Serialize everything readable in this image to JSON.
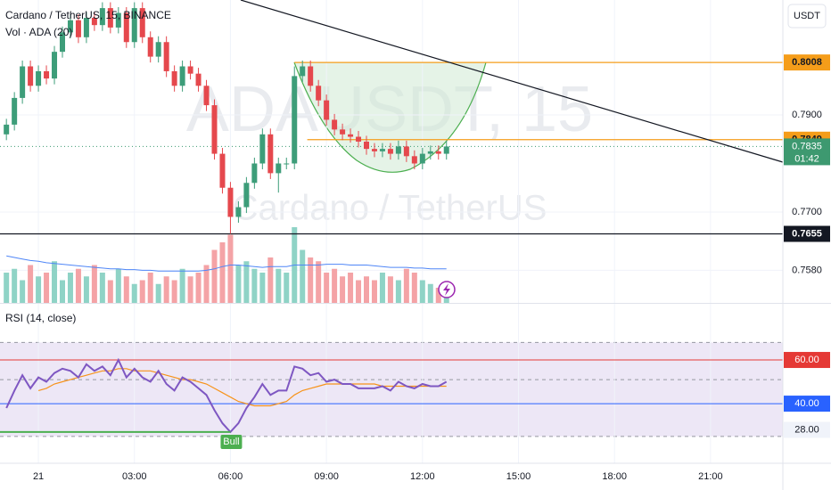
{
  "chart_data": {
    "type": "candlestick",
    "title": "Cardano / TetherUS, 15, BINANCE",
    "watermark": "ADAUSDT, 15",
    "watermark_subtitle": "Cardano / TetherUS",
    "currency": "USDT",
    "x": [
      -1.0,
      -0.75,
      -0.5,
      -0.25,
      0.0,
      0.25,
      0.5,
      0.75,
      1.0,
      1.25,
      1.5,
      1.75,
      2.0,
      2.25,
      2.5,
      2.75,
      3.0,
      3.25,
      3.5,
      3.75,
      4.0,
      4.25,
      4.5,
      4.75,
      5.0,
      5.25,
      5.5,
      5.75,
      6.0,
      6.25,
      6.5,
      6.75,
      7.0,
      7.25,
      7.5,
      7.75,
      8.0,
      8.25,
      8.5,
      8.75,
      9.0,
      9.25,
      9.5,
      9.75,
      10.0,
      10.25,
      10.5,
      10.75,
      11.0,
      11.25,
      11.5,
      11.75,
      12.0,
      12.25,
      12.5,
      12.75
    ],
    "xlim": [
      -1.2,
      23.26
    ],
    "xticks": [
      {
        "value": 0,
        "label": "21"
      },
      {
        "value": 3,
        "label": "03:00"
      },
      {
        "value": 6,
        "label": "06:00"
      },
      {
        "value": 9,
        "label": "09:00"
      },
      {
        "value": 12,
        "label": "12:00"
      },
      {
        "value": 15,
        "label": "15:00"
      },
      {
        "value": 18,
        "label": "18:00"
      },
      {
        "value": 21,
        "label": "21:00"
      }
    ],
    "ylim": [
      0.75128,
      0.81367
    ],
    "yticks": [
      {
        "value": 0.758,
        "label": "0.7580"
      },
      {
        "value": 0.77,
        "label": "0.7700"
      },
      {
        "value": 0.79,
        "label": "0.7900"
      }
    ],
    "grid": true,
    "up_color": "#3d9d79",
    "down_color": "#e5484d",
    "candles": [
      [
        0.786,
        0.7892,
        0.7848,
        0.788
      ],
      [
        0.788,
        0.7947,
        0.7868,
        0.7935
      ],
      [
        0.7935,
        0.8012,
        0.7923,
        0.8
      ],
      [
        0.8,
        0.8012,
        0.7948,
        0.796
      ],
      [
        0.796,
        0.8002,
        0.7948,
        0.799
      ],
      [
        0.799,
        0.8002,
        0.7963,
        0.7975
      ],
      [
        0.7975,
        0.8042,
        0.7963,
        0.803
      ],
      [
        0.803,
        0.8082,
        0.8018,
        0.807
      ],
      [
        0.807,
        0.8107,
        0.8058,
        0.8095
      ],
      [
        0.8095,
        0.8107,
        0.8048,
        0.806
      ],
      [
        0.806,
        0.8112,
        0.8048,
        0.81
      ],
      [
        0.81,
        0.8112,
        0.8073,
        0.8085
      ],
      [
        0.8085,
        0.8132,
        0.8073,
        0.812
      ],
      [
        0.812,
        0.8132,
        0.8068,
        0.808
      ],
      [
        0.808,
        0.8122,
        0.8068,
        0.811
      ],
      [
        0.811,
        0.8122,
        0.8038,
        0.805
      ],
      [
        0.805,
        0.8132,
        0.8038,
        0.812
      ],
      [
        0.812,
        0.8132,
        0.8048,
        0.806
      ],
      [
        0.806,
        0.8072,
        0.8008,
        0.802
      ],
      [
        0.802,
        0.8062,
        0.8008,
        0.805
      ],
      [
        0.805,
        0.8062,
        0.7978,
        0.799
      ],
      [
        0.799,
        0.8002,
        0.7948,
        0.796
      ],
      [
        0.796,
        0.8012,
        0.7948,
        0.8
      ],
      [
        0.8,
        0.8012,
        0.7973,
        0.7985
      ],
      [
        0.7985,
        0.7997,
        0.7948,
        0.796
      ],
      [
        0.796,
        0.7972,
        0.7908,
        0.792
      ],
      [
        0.792,
        0.7932,
        0.7808,
        0.782
      ],
      [
        0.782,
        0.7832,
        0.7738,
        0.775
      ],
      [
        0.775,
        0.7762,
        0.7655,
        0.769
      ],
      [
        0.769,
        0.7722,
        0.7678,
        0.771
      ],
      [
        0.771,
        0.7772,
        0.7698,
        0.776
      ],
      [
        0.776,
        0.7812,
        0.7748,
        0.78
      ],
      [
        0.78,
        0.7872,
        0.7788,
        0.786
      ],
      [
        0.786,
        0.7872,
        0.7768,
        0.778
      ],
      [
        0.778,
        0.7812,
        0.774,
        0.78
      ],
      [
        0.78,
        0.7812,
        0.7788,
        0.78
      ],
      [
        0.78,
        0.8,
        0.7788,
        0.798
      ],
      [
        0.798,
        0.8012,
        0.7968,
        0.8
      ],
      [
        0.8,
        0.8012,
        0.7948,
        0.796
      ],
      [
        0.796,
        0.7972,
        0.7918,
        0.793
      ],
      [
        0.793,
        0.7942,
        0.7878,
        0.789
      ],
      [
        0.789,
        0.7902,
        0.7858,
        0.787
      ],
      [
        0.787,
        0.7882,
        0.7848,
        0.786
      ],
      [
        0.786,
        0.7872,
        0.7843,
        0.7855
      ],
      [
        0.7855,
        0.7867,
        0.7833,
        0.7845
      ],
      [
        0.7845,
        0.7857,
        0.7818,
        0.783
      ],
      [
        0.783,
        0.7842,
        0.7813,
        0.7825
      ],
      [
        0.7825,
        0.7842,
        0.7813,
        0.783
      ],
      [
        0.783,
        0.7842,
        0.7808,
        0.782
      ],
      [
        0.782,
        0.7847,
        0.7808,
        0.7835
      ],
      [
        0.7835,
        0.7847,
        0.7803,
        0.7815
      ],
      [
        0.7815,
        0.7827,
        0.7788,
        0.78
      ],
      [
        0.78,
        0.7832,
        0.7788,
        0.782
      ],
      [
        0.782,
        0.7837,
        0.7808,
        0.7825
      ],
      [
        0.7825,
        0.7837,
        0.7808,
        0.782
      ],
      [
        0.782,
        0.7847,
        0.7808,
        0.7835
      ]
    ],
    "price_levels": [
      {
        "value": 0.8008,
        "start": 8.0,
        "color": "#f59d1a",
        "text_color": "#131722"
      },
      {
        "value": 0.7849,
        "start": 8.4,
        "color": "#f59d1a",
        "text_color": "#131722"
      },
      {
        "value": 0.7655,
        "start": -1.2,
        "color": "#131722",
        "text_color": "#ffffff"
      }
    ],
    "last_price": {
      "value": 0.7835,
      "countdown": "01:42",
      "color": "#3d9970"
    },
    "volume": {
      "label": "Vol · ADA (20)",
      "ylim": [
        0,
        400
      ],
      "values": [
        40,
        45,
        30,
        50,
        35,
        40,
        55,
        30,
        40,
        45,
        35,
        50,
        40,
        30,
        45,
        35,
        25,
        30,
        40,
        25,
        35,
        30,
        45,
        35,
        40,
        50,
        70,
        80,
        90,
        50,
        55,
        45,
        40,
        60,
        45,
        40,
        100,
        70,
        60,
        55,
        40,
        45,
        35,
        40,
        30,
        35,
        30,
        40,
        35,
        30,
        45,
        40,
        30,
        25,
        20,
        25
      ],
      "ma": [
        62,
        60,
        58,
        56,
        55,
        53,
        52,
        51,
        50,
        49,
        48,
        47,
        46,
        45,
        45,
        44,
        44,
        43,
        43,
        42,
        42,
        42,
        42,
        42,
        42,
        43,
        45,
        48,
        50,
        50,
        49,
        48,
        47,
        48,
        48,
        48,
        50,
        50,
        50,
        50,
        51,
        51,
        51,
        50,
        50,
        50,
        49,
        48,
        47,
        47,
        47,
        46,
        46,
        45,
        45,
        45
      ],
      "ma_color": "#4f86f7",
      "up_color": "#8fd3c6",
      "down_color": "#f4a3a6"
    },
    "rsi": {
      "label": "RSI (14, close)",
      "ylim": [
        12.7,
        85.3
      ],
      "values": [
        38,
        46,
        53,
        47,
        52,
        50,
        54,
        56,
        55,
        52,
        58,
        55,
        57,
        53,
        60,
        52,
        56,
        52,
        50,
        55,
        49,
        46,
        52,
        50,
        47,
        44,
        37,
        31,
        27,
        31,
        38,
        43,
        49,
        44,
        46,
        46,
        57,
        56,
        53,
        54,
        50,
        51,
        49,
        49,
        47,
        47,
        47,
        48,
        46,
        50,
        48,
        47,
        49,
        48,
        48,
        50
      ],
      "color": "#7e57c2",
      "ma": [
        null,
        null,
        null,
        null,
        46,
        47,
        49,
        50,
        51,
        52,
        53,
        54,
        55,
        55,
        56,
        56,
        55,
        55,
        55,
        54,
        53,
        52,
        51,
        51,
        50,
        49,
        47,
        45,
        43,
        41,
        40,
        39,
        39,
        39,
        40,
        41,
        44,
        46,
        47,
        48,
        49,
        49,
        49,
        49,
        49,
        49,
        49,
        48,
        48,
        48,
        48,
        48,
        48,
        48,
        48,
        48
      ],
      "ma_color": "#f7931a",
      "levels": [
        {
          "value": 60,
          "label": "60.00",
          "color": "#e53935"
        },
        {
          "value": 40,
          "label": "40.00",
          "color": "#2962ff"
        }
      ],
      "yticks": [
        {
          "value": 28,
          "label": "28.00"
        }
      ],
      "bands": [
        68,
        51,
        25
      ],
      "band_color": "#ede7f6",
      "divergence": {
        "label": "Bull",
        "x": [
          -1.2,
          6.0
        ],
        "values": [
          27,
          27
        ],
        "color": "#4caf50"
      }
    }
  }
}
